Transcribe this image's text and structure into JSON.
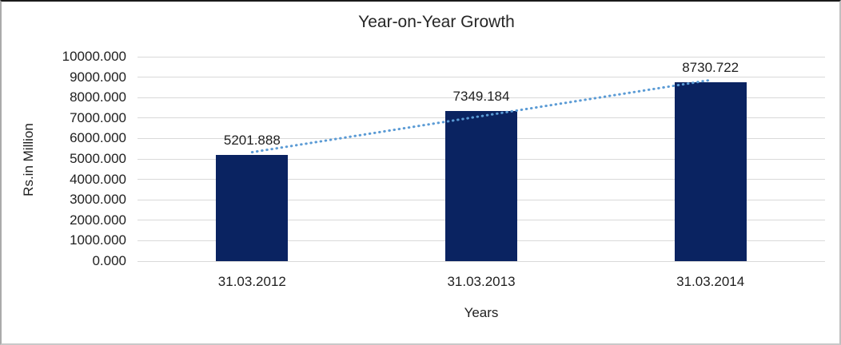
{
  "chart_data": {
    "type": "bar",
    "title": "Year-on-Year Growth",
    "xlabel": "Years",
    "ylabel": "Rs.in Million",
    "categories": [
      "31.03.2012",
      "31.03.2013",
      "31.03.2014"
    ],
    "values": [
      5201.888,
      7349.184,
      8730.722
    ],
    "value_labels": [
      "5201.888",
      "7349.184",
      "8730.722"
    ],
    "ylim": [
      0,
      10000
    ],
    "ytick_step": 1000,
    "yticks": [
      {
        "value": 0,
        "label": "0.000"
      },
      {
        "value": 1000,
        "label": "1000.000"
      },
      {
        "value": 2000,
        "label": "2000.000"
      },
      {
        "value": 3000,
        "label": "3000.000"
      },
      {
        "value": 4000,
        "label": "4000.000"
      },
      {
        "value": 5000,
        "label": "5000.000"
      },
      {
        "value": 6000,
        "label": "6000.000"
      },
      {
        "value": 7000,
        "label": "7000.000"
      },
      {
        "value": 8000,
        "label": "8000.000"
      },
      {
        "value": 9000,
        "label": "9000.000"
      },
      {
        "value": 10000,
        "label": "10000.000"
      }
    ],
    "grid": true,
    "legend": "none",
    "colors": {
      "bar": "#0a2361",
      "trendline": "#5b9bd5",
      "gridline": "#d9d9d9",
      "text": "#1f1f1f"
    },
    "trendline": {
      "type": "linear",
      "style": "dotted",
      "color": "#5b9bd5",
      "start_value": 5330,
      "end_value": 8858
    }
  }
}
